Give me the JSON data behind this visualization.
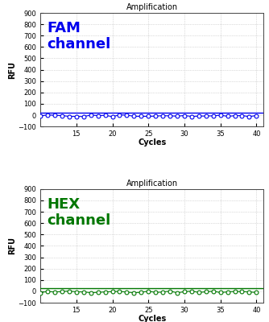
{
  "title": "Amplification",
  "xlabel": "Cycles",
  "ylabel": "RFU",
  "xlim": [
    10,
    41
  ],
  "ylim": [
    -100,
    900
  ],
  "yticks": [
    -100,
    0,
    100,
    200,
    300,
    400,
    500,
    600,
    700,
    800,
    900
  ],
  "xticks": [
    15,
    20,
    25,
    30,
    35,
    40
  ],
  "fam_label": "FAM\nchannel",
  "fam_color": "#0000EE",
  "hex_label": "HEX\nchannel",
  "hex_color": "#007700",
  "threshold_y": 25,
  "data_y_fam": -5,
  "data_y_hex": -5,
  "background_color": "#ffffff",
  "grid_color": "#bbbbbb"
}
